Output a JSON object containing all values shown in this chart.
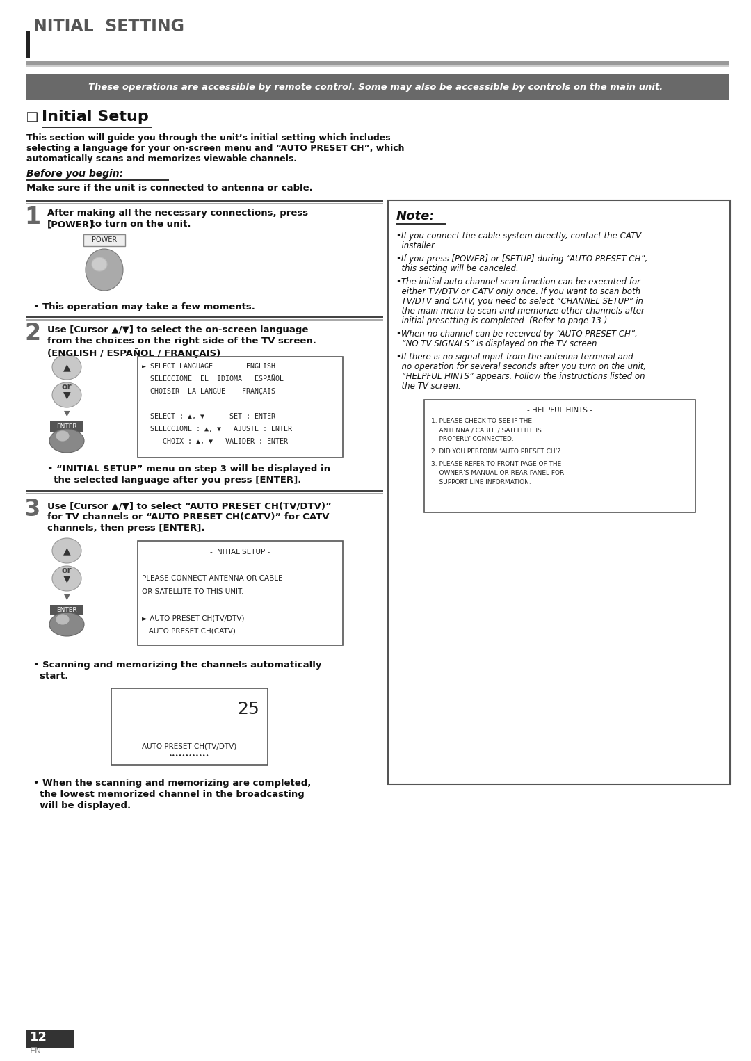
{
  "page_bg": "#ffffff",
  "header_text": "NITIAL  SETTING",
  "gray_banner_text": "These operations are accessible by remote control. Some may also be accessible by controls on the main unit.",
  "section_title": "Initial Setup",
  "intro_text_line1": "This section will guide you through the unit’s initial setting which includes",
  "intro_text_line2": "selecting a language for your on-screen menu and “AUTO PRESET CH”, which",
  "intro_text_line3": "automatically scans and memorizes viewable channels.",
  "before_begin_label": "Before you begin:",
  "before_begin_text": "Make sure if the unit is connected to antenna or cable.",
  "step1_text1": "After making all the necessary connections, press",
  "step1_text2a": "[POWER]",
  "step1_text2b": " to turn on the unit.",
  "step1_note": "• This operation may take a few moments.",
  "step2_text_line1": "Use [Cursor ▲/▼] to select the on-screen language",
  "step2_text_line2": "from the choices on the right side of the TV screen.",
  "step2_text_line3": "(ENGLISH / ESPAÑOL / FRANÇAIS)",
  "step2_note_line1": "• “INITIAL SETUP” menu on step 3 will be displayed in",
  "step2_note_line2": "  the selected language after you press [ENTER].",
  "step3_text_line1": "Use [Cursor ▲/▼] to select “AUTO PRESET CH(TV/DTV)”",
  "step3_text_line2": "for TV channels or “AUTO PRESET CH(CATV)” for CATV",
  "step3_text_line3": "channels, then press [ENTER].",
  "step3_note1_line1": "• Scanning and memorizing the channels automatically",
  "step3_note1_line2": "  start.",
  "step3_note2_line1": "• When the scanning and memorizing are completed,",
  "step3_note2_line2": "  the lowest memorized channel in the broadcasting",
  "step3_note2_line3": "  will be displayed.",
  "note_title": "Note:",
  "note_b1_l1": "•If you connect the cable system directly, contact the CATV",
  "note_b1_l2": "  installer.",
  "note_b2_l1": "•If you press [POWER] or [SETUP] during “AUTO PRESET CH”,",
  "note_b2_l2": "  this setting will be canceled.",
  "note_b3_l1": "•The initial auto channel scan function can be executed for",
  "note_b3_l2": "  either TV/DTV or CATV only once. If you want to scan both",
  "note_b3_l3": "  TV/DTV and CATV, you need to select “CHANNEL SETUP” in",
  "note_b3_l4": "  the main menu to scan and memorize other channels after",
  "note_b3_l5": "  initial presetting is completed. (Refer to page 13.)",
  "note_b4_l1": "•When no channel can be received by “AUTO PRESET CH”,",
  "note_b4_l2": "  “NO TV SIGNALS” is displayed on the TV screen.",
  "note_b5_l1": "•If there is no signal input from the antenna terminal and",
  "note_b5_l2": "  no operation for several seconds after you turn on the unit,",
  "note_b5_l3": "  “HELPFUL HINTS” appears. Follow the instructions listed on",
  "note_b5_l4": "  the TV screen.",
  "hint_title": "- HELPFUL HINTS -",
  "hint1_l1": "1. PLEASE CHECK TO SEE IF THE",
  "hint1_l2": "    ANTENNA / CABLE / SATELLITE IS",
  "hint1_l3": "    PROPERLY CONNECTED.",
  "hint2_l1": "2. DID YOU PERFORM ‘AUTO PRESET CH’?",
  "hint3_l1": "3. PLEASE REFER TO FRONT PAGE OF THE",
  "hint3_l2": "    OWNER’S MANUAL OR REAR PANEL FOR",
  "hint3_l3": "    SUPPORT LINE INFORMATION.",
  "lang_box_lines": [
    "► SELECT LANGUAGE        ENGLISH",
    "  SELECCIONE  EL  IDIOMA   ESPAÑOL",
    "  CHOISIR  LA LANGUE    FRANÇAIS",
    "",
    "  SELECT : ▲, ▼      SET : ENTER",
    "  SELECCIONE : ▲, ▼   AJUSTE : ENTER",
    "     CHOIX : ▲, ▼   VALIDER : ENTER"
  ],
  "init_box_lines": [
    "- INITIAL SETUP -",
    "",
    "PLEASE CONNECT ANTENNA OR CABLE",
    "OR SATELLITE TO THIS UNIT.",
    "",
    "► AUTO PRESET CH(TV/DTV)",
    "   AUTO PRESET CH(CATV)"
  ],
  "scan_number": "25",
  "scan_label": "AUTO PRESET CH(TV/DTV)",
  "scan_dots": "••••••••••••",
  "footer_num": "12",
  "footer_lang": "EN"
}
